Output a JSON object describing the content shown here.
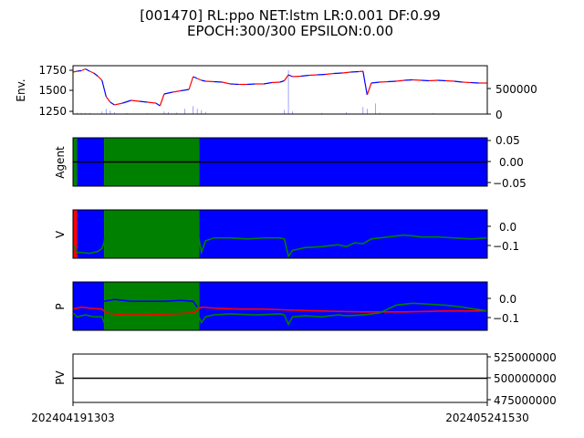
{
  "figure": {
    "title_line1": "[001470] RL:ppo NET:lstm LR:0.001 DF:0.99",
    "title_line2": "EPOCH:300/300 EPSILON:0.00"
  },
  "colors": {
    "up": "#ff0000",
    "down": "#0000ff",
    "green": "#008000",
    "black": "#000000",
    "volume": "#5c5cff"
  },
  "x_axis": {
    "tick_start": "202404191303",
    "tick_end": "202405241530"
  },
  "chart_data": [
    {
      "type": "line",
      "name": "env",
      "ylabel": "Env.",
      "left_ticks": [
        "1250",
        "1500",
        "1750"
      ],
      "right_ticks": [
        "0",
        "500000"
      ],
      "ylim_left": [
        1230,
        1760
      ],
      "ylim_right": [
        0,
        1100000
      ],
      "price": [
        [
          0,
          1690
        ],
        [
          1,
          1700
        ],
        [
          2,
          1705
        ],
        [
          3,
          1725
        ],
        [
          4,
          1700
        ],
        [
          5,
          1680
        ],
        [
          6,
          1645
        ],
        [
          7,
          1600
        ],
        [
          8,
          1420
        ],
        [
          9,
          1360
        ],
        [
          10,
          1330
        ],
        [
          12,
          1350
        ],
        [
          14,
          1380
        ],
        [
          16,
          1370
        ],
        [
          18,
          1360
        ],
        [
          20,
          1350
        ],
        [
          21,
          1320
        ],
        [
          22,
          1450
        ],
        [
          24,
          1470
        ],
        [
          26,
          1485
        ],
        [
          28,
          1500
        ],
        [
          29,
          1640
        ],
        [
          30,
          1620
        ],
        [
          31,
          1600
        ],
        [
          32,
          1590
        ],
        [
          34,
          1585
        ],
        [
          36,
          1580
        ],
        [
          38,
          1560
        ],
        [
          40,
          1555
        ],
        [
          42,
          1555
        ],
        [
          44,
          1560
        ],
        [
          46,
          1560
        ],
        [
          48,
          1575
        ],
        [
          50,
          1580
        ],
        [
          51,
          1595
        ],
        [
          52,
          1660
        ],
        [
          53,
          1640
        ],
        [
          55,
          1645
        ],
        [
          57,
          1655
        ],
        [
          59,
          1660
        ],
        [
          61,
          1665
        ],
        [
          63,
          1675
        ],
        [
          65,
          1680
        ],
        [
          67,
          1690
        ],
        [
          69,
          1695
        ],
        [
          70,
          1700
        ],
        [
          71,
          1440
        ],
        [
          72,
          1570
        ],
        [
          74,
          1580
        ],
        [
          76,
          1585
        ],
        [
          78,
          1590
        ],
        [
          80,
          1600
        ],
        [
          82,
          1605
        ],
        [
          84,
          1600
        ],
        [
          86,
          1595
        ],
        [
          88,
          1600
        ],
        [
          90,
          1595
        ],
        [
          92,
          1590
        ],
        [
          94,
          1580
        ],
        [
          96,
          1575
        ],
        [
          98,
          1570
        ],
        [
          100,
          1570
        ]
      ],
      "volume": [
        [
          1,
          30000
        ],
        [
          2,
          28000
        ],
        [
          3,
          25000
        ],
        [
          4,
          26000
        ],
        [
          7,
          60000
        ],
        [
          8,
          120000
        ],
        [
          9,
          80000
        ],
        [
          10,
          40000
        ],
        [
          13,
          25000
        ],
        [
          18,
          20000
        ],
        [
          22,
          60000
        ],
        [
          23,
          45000
        ],
        [
          25,
          30000
        ],
        [
          27,
          120000
        ],
        [
          29,
          180000
        ],
        [
          30,
          120000
        ],
        [
          31,
          90000
        ],
        [
          32,
          50000
        ],
        [
          51,
          90000
        ],
        [
          52,
          1000000
        ],
        [
          53,
          60000
        ],
        [
          60,
          25000
        ],
        [
          66,
          40000
        ],
        [
          70,
          160000
        ],
        [
          71,
          120000
        ],
        [
          73,
          240000
        ],
        [
          74,
          30000
        ],
        [
          87,
          20000
        ]
      ]
    },
    {
      "type": "area",
      "name": "agent",
      "ylabel": "Agent",
      "right_ticks": [
        "0.05",
        "0.00",
        "−0.05"
      ],
      "ylim": [
        -0.055,
        0.055
      ],
      "regions": [
        [
          "green",
          0,
          1
        ],
        [
          "blue",
          1,
          7.5
        ],
        [
          "green",
          7.5,
          30.5
        ],
        [
          "blue",
          30.5,
          100
        ]
      ],
      "line_value": 0.0
    },
    {
      "type": "line",
      "name": "value",
      "ylabel": "V",
      "right_ticks": [
        "0.0",
        "−0.1"
      ],
      "ylim": [
        -0.16,
        0.09
      ],
      "regions": [
        [
          "red",
          0,
          1
        ],
        [
          "blue",
          1,
          7.5
        ],
        [
          "green",
          7.5,
          30.5
        ],
        [
          "blue",
          30.5,
          100
        ]
      ],
      "series": [
        [
          0,
          -0.09
        ],
        [
          1,
          -0.13
        ],
        [
          2,
          -0.13
        ],
        [
          4,
          -0.135
        ],
        [
          6,
          -0.125
        ],
        [
          7,
          -0.11
        ],
        [
          7.5,
          -0.08
        ],
        [
          8,
          0.0
        ],
        [
          10,
          -0.08
        ],
        [
          14,
          -0.085
        ],
        [
          18,
          -0.09
        ],
        [
          22,
          -0.085
        ],
        [
          26,
          -0.085
        ],
        [
          29,
          -0.08
        ],
        [
          30,
          -0.01
        ],
        [
          31,
          -0.13
        ],
        [
          32,
          -0.07
        ],
        [
          34,
          -0.055
        ],
        [
          38,
          -0.055
        ],
        [
          42,
          -0.06
        ],
        [
          46,
          -0.055
        ],
        [
          50,
          -0.055
        ],
        [
          51,
          -0.06
        ],
        [
          52,
          -0.15
        ],
        [
          53,
          -0.12
        ],
        [
          56,
          -0.105
        ],
        [
          60,
          -0.1
        ],
        [
          64,
          -0.09
        ],
        [
          66,
          -0.1
        ],
        [
          68,
          -0.08
        ],
        [
          70,
          -0.085
        ],
        [
          72,
          -0.06
        ],
        [
          76,
          -0.05
        ],
        [
          80,
          -0.04
        ],
        [
          84,
          -0.05
        ],
        [
          88,
          -0.05
        ],
        [
          92,
          -0.055
        ],
        [
          96,
          -0.06
        ],
        [
          100,
          -0.055
        ]
      ]
    },
    {
      "type": "line",
      "name": "policy",
      "ylabel": "P",
      "right_ticks": [
        "0.0",
        "−0.1"
      ],
      "ylim": [
        -0.17,
        0.08
      ],
      "regions": [
        [
          "blue",
          0,
          7.5
        ],
        [
          "green",
          7.5,
          30.5
        ],
        [
          "blue",
          30.5,
          100
        ]
      ],
      "series": [
        {
          "color": "red",
          "points": [
            [
              0,
              -0.06
            ],
            [
              2,
              -0.05
            ],
            [
              4,
              -0.055
            ],
            [
              7,
              -0.06
            ],
            [
              8,
              -0.08
            ],
            [
              12,
              -0.09
            ],
            [
              18,
              -0.09
            ],
            [
              24,
              -0.085
            ],
            [
              29,
              -0.08
            ],
            [
              31,
              -0.05
            ],
            [
              34,
              -0.055
            ],
            [
              40,
              -0.06
            ],
            [
              46,
              -0.06
            ],
            [
              52,
              -0.065
            ],
            [
              60,
              -0.07
            ],
            [
              70,
              -0.075
            ],
            [
              80,
              -0.075
            ],
            [
              90,
              -0.07
            ],
            [
              100,
              -0.07
            ]
          ]
        },
        {
          "color": "green",
          "points": [
            [
              0,
              -0.08
            ],
            [
              1,
              -0.1
            ],
            [
              3,
              -0.09
            ],
            [
              5,
              -0.1
            ],
            [
              7,
              -0.1
            ],
            [
              7.5,
              -0.13
            ],
            [
              8,
              -0.12
            ],
            [
              12,
              -0.115
            ],
            [
              18,
              -0.115
            ],
            [
              24,
              -0.12
            ],
            [
              29,
              -0.125
            ],
            [
              30,
              -0.08
            ],
            [
              31,
              -0.13
            ],
            [
              32,
              -0.1
            ],
            [
              34,
              -0.09
            ],
            [
              38,
              -0.085
            ],
            [
              44,
              -0.09
            ],
            [
              50,
              -0.085
            ],
            [
              51,
              -0.09
            ],
            [
              52,
              -0.14
            ],
            [
              53,
              -0.1
            ],
            [
              56,
              -0.095
            ],
            [
              60,
              -0.1
            ],
            [
              64,
              -0.09
            ],
            [
              66,
              -0.095
            ],
            [
              70,
              -0.09
            ],
            [
              74,
              -0.08
            ],
            [
              78,
              -0.04
            ],
            [
              82,
              -0.03
            ],
            [
              86,
              -0.035
            ],
            [
              90,
              -0.04
            ],
            [
              94,
              -0.05
            ],
            [
              100,
              -0.07
            ]
          ]
        },
        {
          "color": "blue",
          "points": [
            [
              7.5,
              -0.02
            ],
            [
              10,
              -0.01
            ],
            [
              14,
              -0.02
            ],
            [
              18,
              -0.02
            ],
            [
              22,
              -0.02
            ],
            [
              26,
              -0.015
            ],
            [
              29,
              -0.02
            ],
            [
              30,
              -0.05
            ]
          ]
        }
      ]
    },
    {
      "type": "line",
      "name": "pv",
      "ylabel": "PV",
      "right_ticks": [
        "525000000",
        "500000000",
        "475000000"
      ],
      "ylim": [
        472000000,
        528000000
      ],
      "series": [
        [
          0,
          500000000
        ],
        [
          100,
          500000000
        ]
      ]
    }
  ]
}
